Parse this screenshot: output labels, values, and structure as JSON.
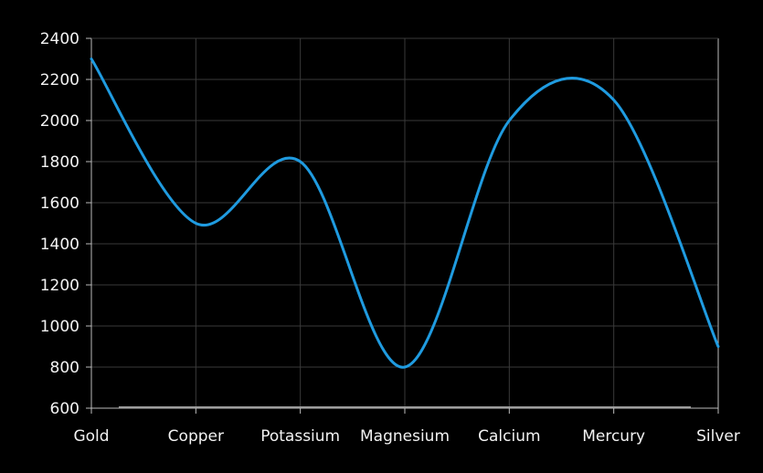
{
  "chart_data": {
    "type": "line",
    "categories": [
      "Gold",
      "Copper",
      "Potassium",
      "Magnesium",
      "Calcium",
      "Mercury",
      "Silver"
    ],
    "series": [
      {
        "values": [
          2300,
          1500,
          1800,
          800,
          2000,
          2100,
          900
        ]
      }
    ],
    "ylim": [
      600,
      2400
    ],
    "y_ticks": [
      "600",
      "800",
      "1000",
      "1200",
      "1400",
      "1600",
      "1800",
      "2000",
      "2200",
      "2400"
    ],
    "grid": true,
    "legend": "none",
    "title": "",
    "xlabel": "",
    "ylabel": ""
  },
  "colors": {
    "background": "#000000",
    "line": "#1f9be0",
    "grid": "#3a3a3a",
    "axis": "#bdbdbd",
    "text": "#f2f2f2"
  }
}
